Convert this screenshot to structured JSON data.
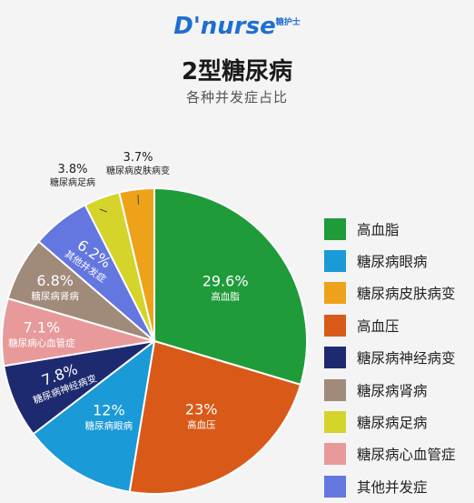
{
  "brand": {
    "logo_text": "D'nurse",
    "logo_sup": "糖护士"
  },
  "chart_data": {
    "type": "pie",
    "title": "2型糖尿病",
    "subtitle": "各种并发症占比",
    "slices": [
      {
        "name": "高血脂",
        "value": 29.6,
        "label": "29.6%",
        "color": "#1f9b3a"
      },
      {
        "name": "高血压",
        "value": 23,
        "label": "23%",
        "color": "#d95a18"
      },
      {
        "name": "糖尿病眼病",
        "value": 12,
        "label": "12%",
        "color": "#1a9ad6"
      },
      {
        "name": "糖尿病神经病变",
        "value": 7.8,
        "label": "7.8%",
        "color": "#1e2a70"
      },
      {
        "name": "糖尿病心血管症",
        "value": 7.1,
        "label": "7.1%",
        "color": "#e89a9a"
      },
      {
        "name": "糖尿病肾病",
        "value": 6.8,
        "label": "6.8%",
        "color": "#a08a7a"
      },
      {
        "name": "其他并发症",
        "value": 6.2,
        "label": "6.2%",
        "color": "#6476e0"
      },
      {
        "name": "糖尿病足病",
        "value": 3.8,
        "label": "3.8%",
        "color": "#d4d42a"
      },
      {
        "name": "糖尿病皮肤病变",
        "value": 3.7,
        "label": "3.7%",
        "color": "#eea21a"
      }
    ],
    "legend": [
      {
        "label": "高血脂",
        "color": "#1f9b3a"
      },
      {
        "label": "糖尿病眼病",
        "color": "#1a9ad6"
      },
      {
        "label": "糖尿病皮肤病变",
        "color": "#eea21a"
      },
      {
        "label": "高血压",
        "color": "#d95a18"
      },
      {
        "label": "糖尿病神经病变",
        "color": "#1e2a70"
      },
      {
        "label": "糖尿病肾病",
        "color": "#a08a7a"
      },
      {
        "label": "糖尿病足病",
        "color": "#d4d42a"
      },
      {
        "label": "糖尿病心血管症",
        "color": "#e89a9a"
      },
      {
        "label": "其他并发症",
        "color": "#6476e0"
      }
    ],
    "legend_position": "right"
  }
}
